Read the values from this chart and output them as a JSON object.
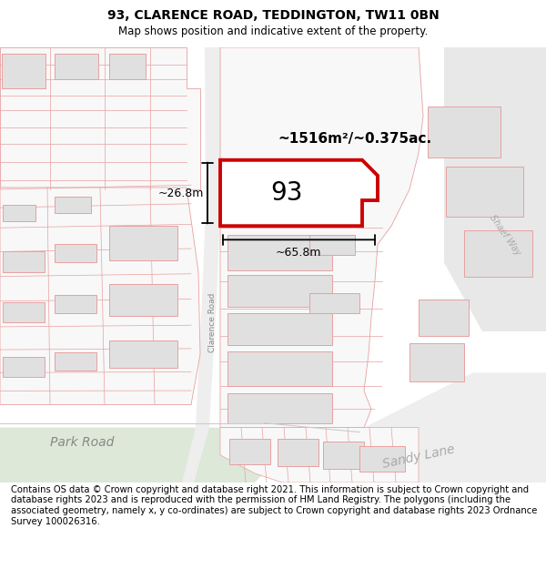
{
  "title": "93, CLARENCE ROAD, TEDDINGTON, TW11 0BN",
  "subtitle": "Map shows position and indicative extent of the property.",
  "footer": "Contains OS data © Crown copyright and database right 2021. This information is subject to Crown copyright and database rights 2023 and is reproduced with the permission of HM Land Registry. The polygons (including the associated geometry, namely x, y co-ordinates) are subject to Crown copyright and database rights 2023 Ordnance Survey 100026316.",
  "area_label": "~1516m²/~0.375ac.",
  "width_label": "~65.8m",
  "height_label": "~26.8m",
  "property_number": "93",
  "road_label_clarence": "Clarence Road",
  "road_label_park": "Park Road",
  "road_label_sandy": "Sandy Lane",
  "road_label_shaef": "Shaef Way",
  "bg_color": "#ffffff",
  "building_fill": "#e0e0e0",
  "building_outline": "#e8a0a0",
  "highlight_fill": "#ffffff",
  "highlight_outline": "#cc0000",
  "title_fontsize": 10,
  "subtitle_fontsize": 8.5,
  "footer_fontsize": 7.2
}
